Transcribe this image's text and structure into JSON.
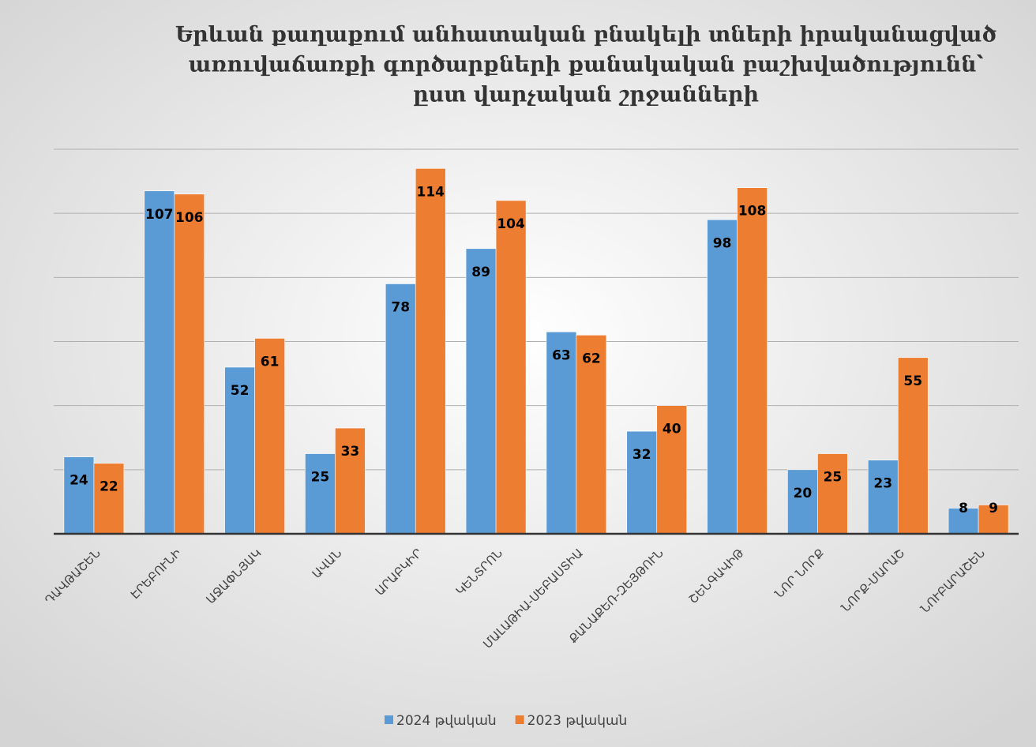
{
  "chart_data": {
    "type": "bar",
    "title": [
      "Երևան քաղաքում անհատական բնակելի տների իրականացված",
      "առուվաճառքի գործարքների քանակական բաշխվածությունն՝",
      "ըստ վարչական շրջանների"
    ],
    "categories": [
      "ԴԱՎԹԱՇԵՆ",
      "ԷՐԵԲՈՒՆԻ",
      "ԱՋԱՓՆՅԱԿ",
      "ԱՎԱՆ",
      "ԱՐԱԲԿԻՐ",
      "ԿԵՆՏՐՈՆ",
      "ՄԱԼԱԹԻԱ-ՍԵԲԱՍՏԻԱ",
      "ՔԱՆԱՔԵՌ-ԶԵՅԹՈՒՆ",
      "ՇԵՆԳԱՎԻԹ",
      "ՆՈՐ ՆՈՐՔ",
      "ՆՈՐՔ-ՄԱՐԱՇ",
      "ՆՈՒԲԱՐԱՇԵՆ"
    ],
    "series": [
      {
        "name": "2024 թվական",
        "color": "#5b9bd5",
        "values": [
          24,
          107,
          52,
          25,
          78,
          89,
          63,
          32,
          98,
          20,
          23,
          8
        ]
      },
      {
        "name": "2023 թվական",
        "color": "#ed7d31",
        "values": [
          22,
          106,
          61,
          33,
          114,
          104,
          62,
          40,
          108,
          25,
          55,
          9
        ]
      }
    ],
    "ylim": [
      0,
      120
    ],
    "yticks": [
      0,
      20,
      40,
      60,
      80,
      100,
      120
    ],
    "grid": true,
    "legend": "bottom"
  }
}
